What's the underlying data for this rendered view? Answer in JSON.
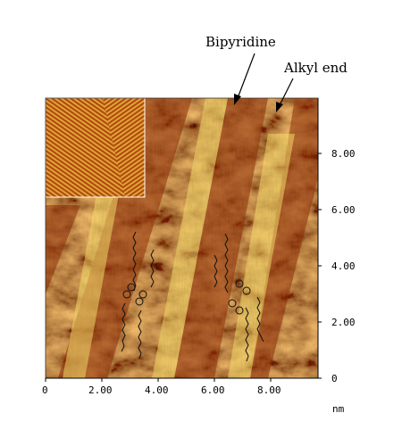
{
  "annotations": {
    "bipyridine": "Bipyridine",
    "alkyl_end": "Alkyl end"
  },
  "axes": {
    "x_ticks": [
      "0",
      "2.00",
      "4.00",
      "6.00",
      "8.00"
    ],
    "y_ticks": [
      "2.00",
      "4.00",
      "6.00",
      "8.00",
      "0"
    ],
    "unit": "nm"
  },
  "colors": {
    "dark": "#8b2a06",
    "mid": "#c96a14",
    "light": "#e8b93a",
    "bright": "#f8ec8a"
  }
}
